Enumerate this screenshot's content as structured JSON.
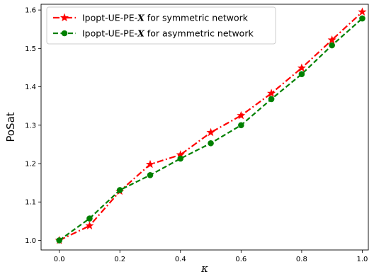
{
  "chart_data": {
    "type": "line",
    "xlabel": "κ",
    "ylabel": "PoSat",
    "xlim": [
      -0.06,
      1.02
    ],
    "ylim": [
      0.975,
      1.615
    ],
    "xticks": [
      0.0,
      0.2,
      0.4,
      0.6,
      0.8,
      1.0
    ],
    "xtick_labels": [
      "0.0",
      "0.2",
      "0.4",
      "0.6",
      "0.8",
      "1.0"
    ],
    "yticks": [
      1.0,
      1.1,
      1.2,
      1.3,
      1.4,
      1.5,
      1.6
    ],
    "ytick_labels": [
      "1.0",
      "1.1",
      "1.2",
      "1.3",
      "1.4",
      "1.5",
      "1.6"
    ],
    "grid": false,
    "legend_position": "top-left",
    "x": [
      0.0,
      0.1,
      0.2,
      0.3,
      0.4,
      0.5,
      0.6,
      0.7,
      0.8,
      0.9,
      1.0
    ],
    "series": [
      {
        "name_prefix": "Ipopt-UE-PE-",
        "name_symbol": "X",
        "name_suffix": " for symmetric network",
        "color": "#ff0000",
        "linestyle": "dash-dot",
        "marker": "star",
        "values": [
          1.0,
          1.038,
          1.128,
          1.198,
          1.223,
          1.281,
          1.325,
          1.383,
          1.449,
          1.522,
          1.595
        ]
      },
      {
        "name_prefix": "Ipopt-UE-PE-",
        "name_symbol": "X",
        "name_suffix": " for asymmetric network",
        "color": "#008000",
        "linestyle": "dashed",
        "marker": "circle",
        "values": [
          1.0,
          1.057,
          1.131,
          1.17,
          1.213,
          1.253,
          1.3,
          1.368,
          1.433,
          1.508,
          1.578
        ]
      }
    ]
  }
}
